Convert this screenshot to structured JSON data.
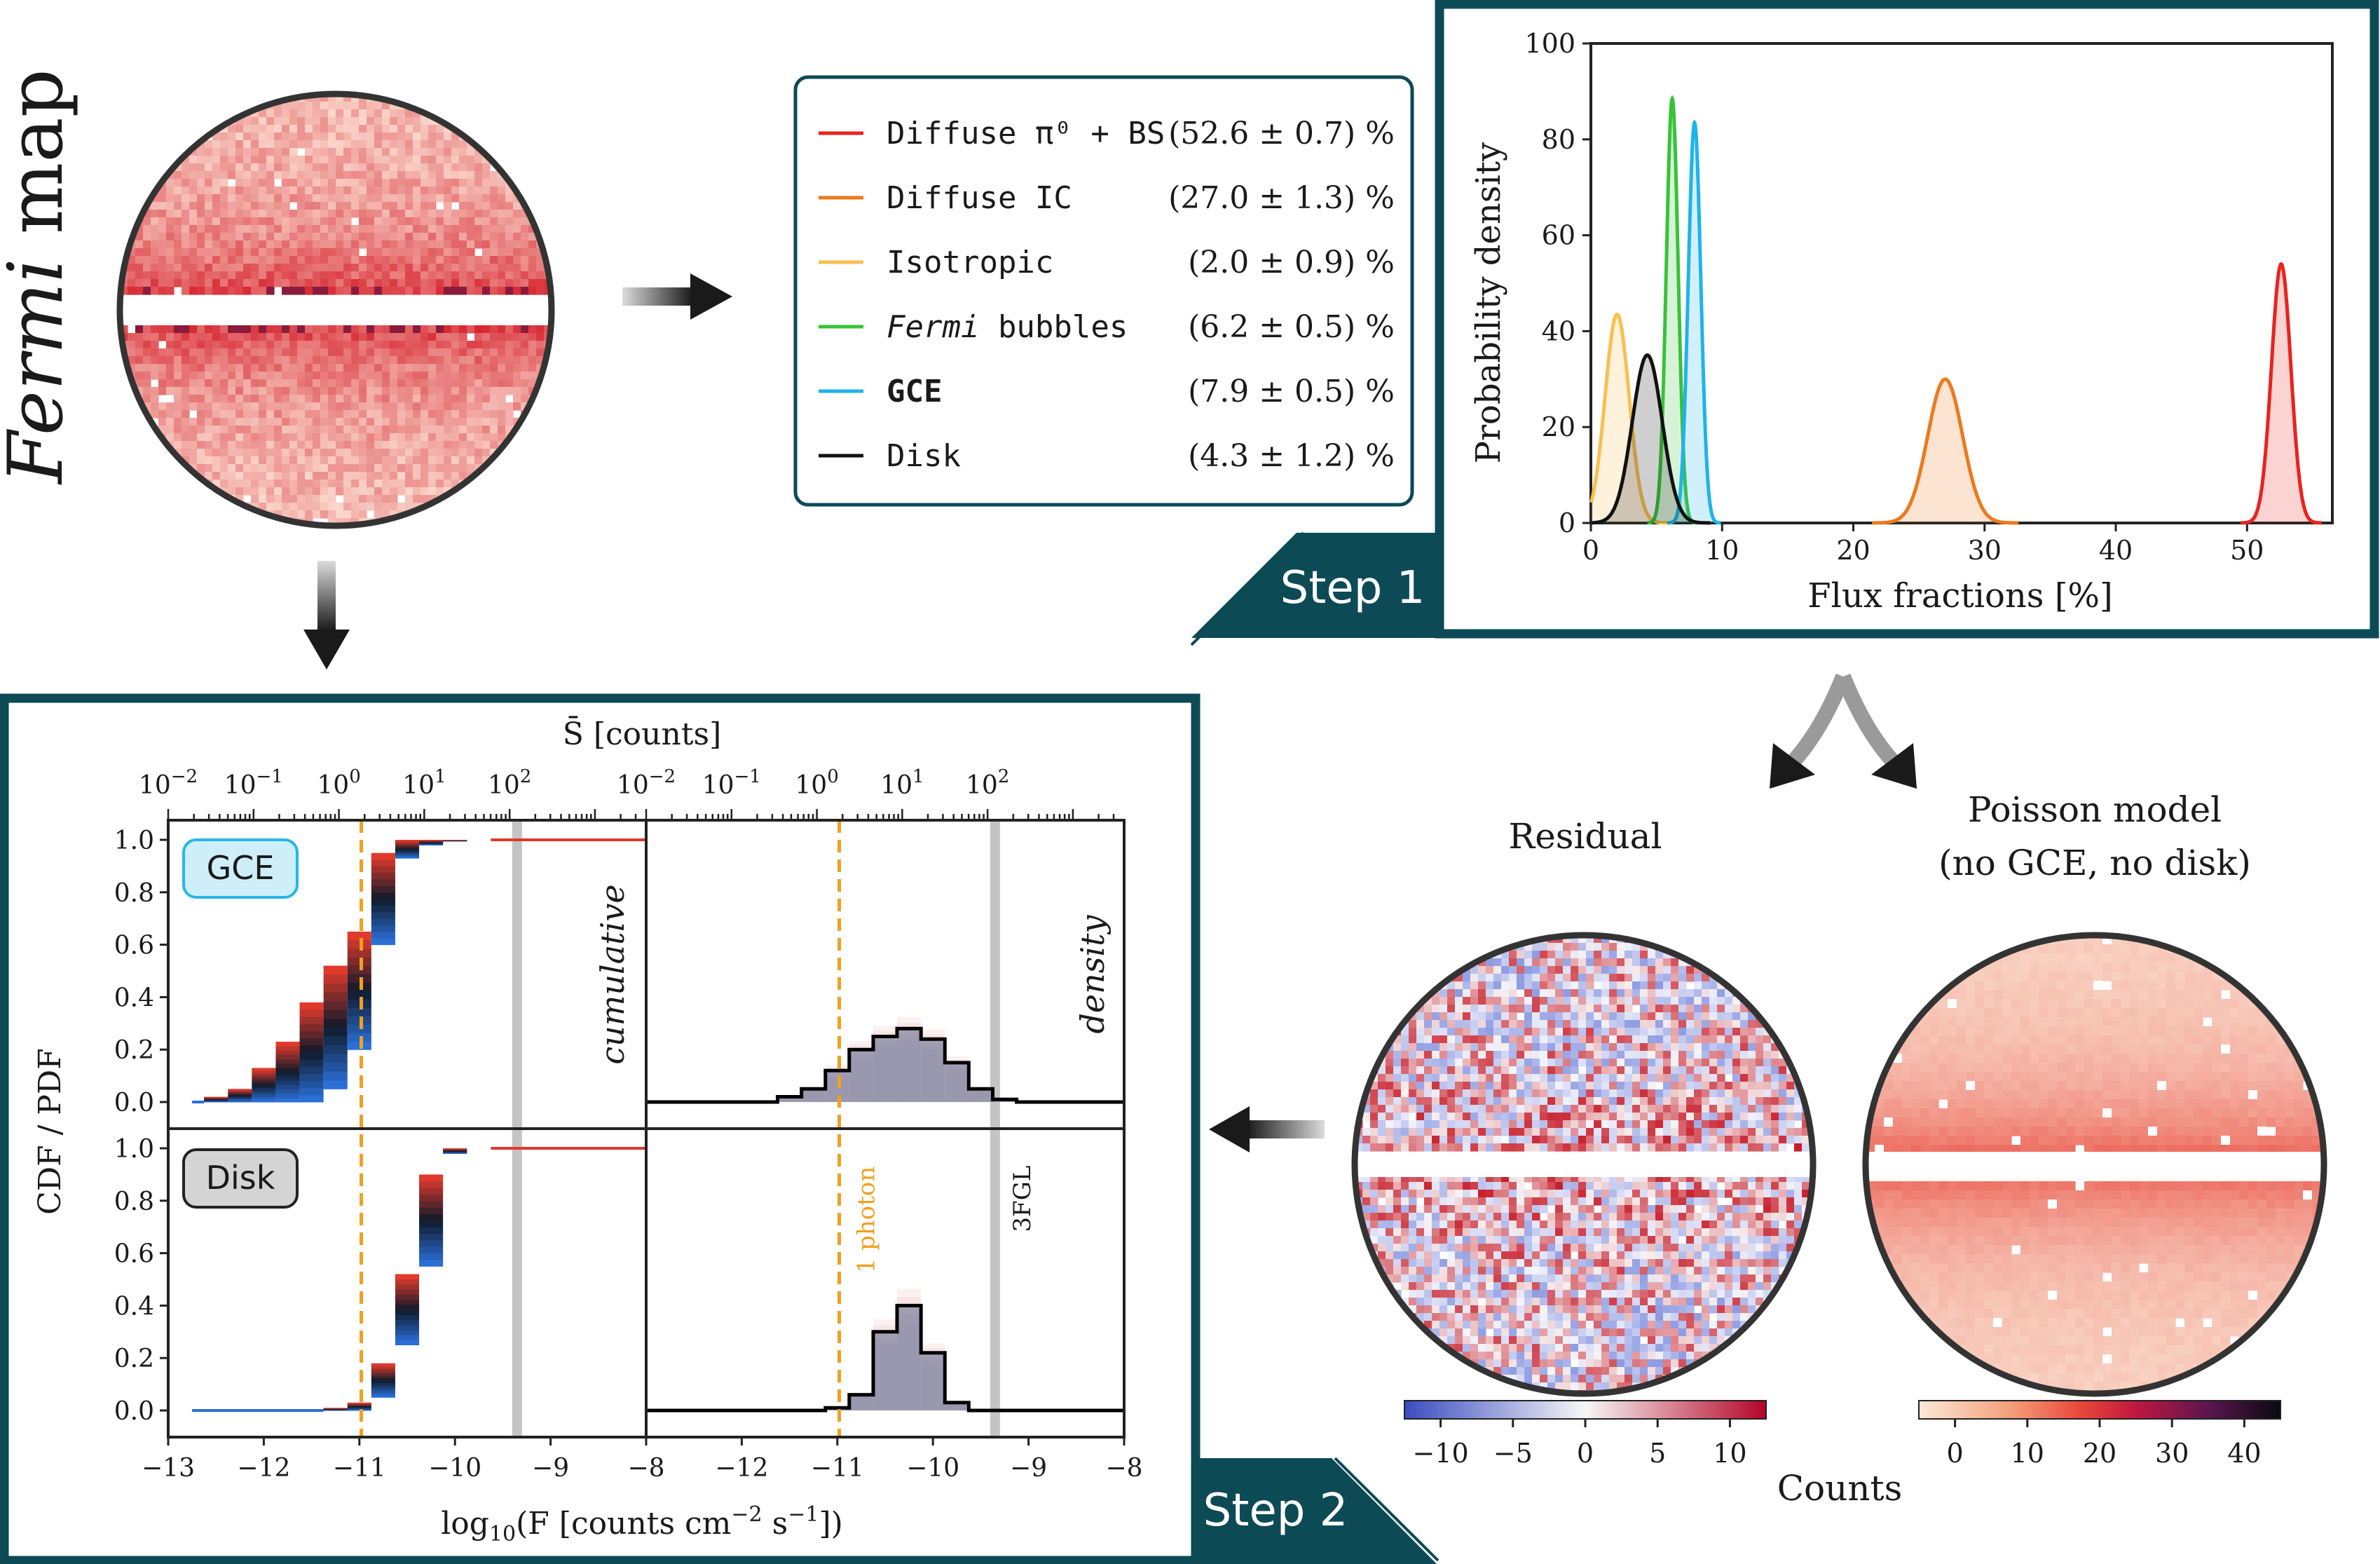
{
  "map_title": {
    "italic": "Fermi",
    "rest": " map"
  },
  "legend": {
    "items": [
      {
        "label": "Diffuse π⁰ + BS",
        "value": "(52.6 ± 0.7) %",
        "color": "#e8231f",
        "bold": false,
        "italic_word": ""
      },
      {
        "label": "Diffuse IC",
        "value": "(27.0 ± 1.3) %",
        "color": "#ec7a1e",
        "bold": false,
        "italic_word": ""
      },
      {
        "label": "Isotropic",
        "value": "(2.0 ± 0.9) %",
        "color": "#f8c050",
        "bold": false,
        "italic_word": ""
      },
      {
        "label": " bubbles",
        "value": "(6.2 ± 0.5) %",
        "color": "#38c238",
        "bold": false,
        "italic_word": "Fermi"
      },
      {
        "label": "GCE",
        "value": "(7.9 ± 0.5) %",
        "color": "#1fb3ea",
        "bold": true,
        "italic_word": ""
      },
      {
        "label": "Disk",
        "value": "(4.3 ± 1.2) %",
        "color": "#111111",
        "bold": false,
        "italic_word": ""
      }
    ]
  },
  "step1": {
    "label": "Step 1"
  },
  "step2": {
    "label": "Step 2"
  },
  "colors": {
    "frame": "#0c4a56",
    "gce_fill": "#cfeff8",
    "gce_stroke": "#27b7e8",
    "disk_fill": "#d4d4d4",
    "orange_dash": "#f0a020",
    "grey_band": "#c4c4c4",
    "blue_hist": "#2b6fd6",
    "red_hist": "#e03a2c"
  },
  "chart_data": [
    {
      "type": "line",
      "xlabel": "Flux fractions [%]",
      "ylabel": "Probability density",
      "xlim": [
        0,
        56.5
      ],
      "ylim": [
        0,
        100
      ],
      "xticks": [
        0,
        10,
        20,
        30,
        40,
        50
      ],
      "yticks": [
        0,
        20,
        40,
        60,
        80,
        100
      ],
      "series": [
        {
          "name": "Diffuse π⁰ + BS",
          "center": 52.6,
          "peak": 54,
          "color": "#e8231f"
        },
        {
          "name": "Diffuse IC",
          "center": 27.0,
          "peak": 30,
          "color": "#ec7a1e"
        },
        {
          "name": "Isotropic",
          "center": 2.0,
          "peak": 43.5,
          "color": "#f8c050"
        },
        {
          "name": "Fermi bubbles",
          "center": 6.2,
          "peak": 88.5,
          "color": "#38c238"
        },
        {
          "name": "GCE",
          "center": 7.9,
          "peak": 83.5,
          "color": "#1fb3ea"
        },
        {
          "name": "Disk",
          "center": 4.3,
          "peak": 35,
          "color": "#111111"
        }
      ]
    },
    {
      "type": "bar",
      "ylabel": "CDF / PDF",
      "xlabel_prefix": "log",
      "xlabel_sub": "10",
      "xlabel_open": "(F [counts cm",
      "xlabel_sup1": "−2",
      "xlabel_mid": " s",
      "xlabel_sup2": "−1",
      "xlabel_close": "])",
      "top_axis_label": "S̄ [counts]",
      "xlim": [
        -13,
        -8
      ],
      "xticks": [
        "−13",
        "−12",
        "−11",
        "−10",
        "−9",
        "−8"
      ],
      "yticks": [
        "0.0",
        "0.2",
        "0.4",
        "0.6",
        "0.8",
        "1.0"
      ],
      "top_ticks": [
        {
          "b": "10",
          "e": "−2"
        },
        {
          "b": "10",
          "e": "−1"
        },
        {
          "b": "10",
          "e": "0"
        },
        {
          "b": "10",
          "e": "1"
        },
        {
          "b": "10",
          "e": "2"
        }
      ],
      "panel_labels": {
        "cumulative": "cumulative",
        "density": "density",
        "gce": "GCE",
        "disk": "Disk"
      },
      "annotations": {
        "one_photon": "1 photon",
        "threefgl": "3FGL"
      },
      "one_photon_x": -10.98,
      "threefgl_x": -9.35,
      "hist_x": [
        -12.75,
        -12.5,
        -12.25,
        -12.0,
        -11.75,
        -11.5,
        -11.25,
        -11.0,
        -10.75,
        -10.5,
        -10.25,
        -10.0,
        -9.75,
        -9.5,
        -9.25,
        -9.0,
        -8.75,
        -8.5
      ],
      "gce_cdf_blue": [
        0.0,
        0.02,
        0.05,
        0.13,
        0.23,
        0.38,
        0.52,
        0.65,
        0.95,
        1.0
      ],
      "gce_cdf_red": [
        0.0,
        0.0,
        0.0,
        0.0,
        0.0,
        0.0,
        0.05,
        0.2,
        0.6,
        0.93,
        0.98,
        0.995,
        1.0
      ],
      "gce_pdf_median": [
        0,
        0,
        0,
        0,
        0,
        0.02,
        0.05,
        0.12,
        0.2,
        0.25,
        0.28,
        0.24,
        0.15,
        0.05,
        0.01,
        0,
        0,
        0
      ],
      "disk_cdf_blue": [
        0.0,
        0.0,
        0.0,
        0.0,
        0.0,
        0.0,
        0.01,
        0.03,
        0.18,
        0.52,
        0.9,
        1.0
      ],
      "disk_cdf_red": [
        0.0,
        0.0,
        0.0,
        0.0,
        0.0,
        0.0,
        0.0,
        0.0,
        0.05,
        0.25,
        0.55,
        0.98,
        1.0
      ],
      "disk_pdf_median": [
        0,
        0,
        0,
        0,
        0,
        0,
        0,
        0.01,
        0.06,
        0.3,
        0.4,
        0.22,
        0.03,
        0,
        0,
        0,
        0,
        0
      ]
    }
  ],
  "residual": {
    "title": "Residual",
    "colorbar_ticks": [
      "−10",
      "−5",
      "0",
      "5",
      "10"
    ]
  },
  "poisson": {
    "title_line1": "Poisson model",
    "title_line2": "(no GCE, no disk)",
    "colorbar_ticks": [
      "0",
      "10",
      "20",
      "30",
      "40"
    ]
  },
  "colorbar_label": "Counts"
}
